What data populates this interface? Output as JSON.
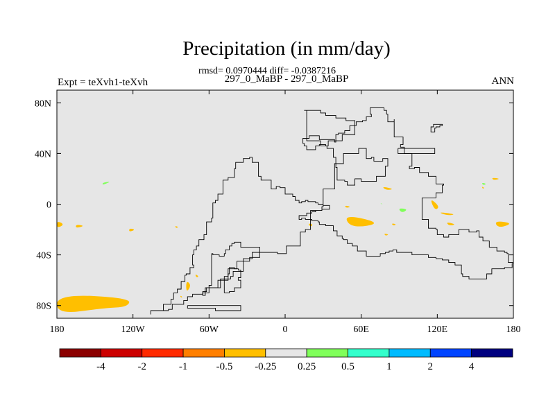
{
  "chart_data": {
    "type": "heatmap",
    "title": "Precipitation (in mm/day)",
    "stats": "rmsd= 0.0970444 diff= -0.0387216",
    "subtitle": "297_0_MaBP - 297_0_MaBP",
    "left_label": "Expt = teXvh1-teXvh",
    "right_label": "ANN",
    "projection": "cylindrical equidistant",
    "xlim": [
      -180,
      180
    ],
    "ylim": [
      -90,
      90
    ],
    "x_tick_values": [
      -180,
      -120,
      -60,
      0,
      60,
      120,
      180
    ],
    "x_tick_labels": [
      "180",
      "120W",
      "60W",
      "0",
      "60E",
      "120E",
      "180"
    ],
    "y_tick_values": [
      80,
      40,
      0,
      -40,
      -80
    ],
    "y_tick_labels": [
      "80N",
      "40N",
      "0",
      "40S",
      "80S"
    ],
    "background_color": "#e6e6e6",
    "colorbar": {
      "colors": [
        "#8b0000",
        "#cc0000",
        "#ff2a00",
        "#ff7f00",
        "#ffbf00",
        "#e6e6e6",
        "#80ff5a",
        "#33ffcc",
        "#00bbff",
        "#0044ff",
        "#00007f"
      ],
      "labels": [
        "-4",
        "-2",
        "-1",
        "-0.5",
        "-0.25",
        "0.25",
        "0.5",
        "1",
        "2",
        "4"
      ]
    },
    "anomaly_regions": [
      {
        "class": "-0.5 to -0.25",
        "color": "#ffbf00",
        "lon": [
          -180,
          -122,
          -124,
          -143,
          -180
        ],
        "lat": [
          -71,
          -74,
          -81,
          -82,
          -87
        ]
      },
      {
        "class": "-0.5 to -0.25",
        "color": "#ffbf00",
        "lon": [
          -180,
          -174,
          -180
        ],
        "lat": [
          -13,
          -16,
          -19
        ]
      },
      {
        "class": "-0.5 to -0.25",
        "color": "#ffbf00",
        "lon": [
          -165,
          -158,
          -165
        ],
        "lat": [
          -16,
          -17,
          -19
        ]
      },
      {
        "class": "-0.5 to -0.25",
        "color": "#ffbf00",
        "lon": [
          -123,
          -118,
          -123
        ],
        "lat": [
          -19,
          -20,
          -22
        ]
      },
      {
        "class": "-0.5 to -0.25",
        "color": "#ffbf00",
        "lon": [
          -87,
          -84,
          -86
        ],
        "lat": [
          -17,
          -18,
          -19
        ]
      },
      {
        "class": "-0.5 to -0.25",
        "color": "#ffbf00",
        "lon": [
          -78,
          -74,
          -78
        ],
        "lat": [
          -60,
          -64,
          -70
        ]
      },
      {
        "class": "-0.5 to -0.25",
        "color": "#ffbf00",
        "lon": [
          -71,
          -68,
          -70
        ],
        "lat": [
          -55,
          -57,
          -58
        ]
      },
      {
        "class": "-0.5 to -0.25",
        "color": "#ffbf00",
        "lon": [
          -83,
          -81,
          -82
        ],
        "lat": [
          -72,
          -73,
          -74
        ]
      },
      {
        "class": "-0.5 to -0.25",
        "color": "#ffbf00",
        "lon": [
          18,
          22,
          20
        ],
        "lat": [
          -15,
          -16,
          -18
        ]
      },
      {
        "class": "-0.5 to -0.25",
        "color": "#ffbf00",
        "lon": [
          46,
          77,
          52
        ],
        "lat": [
          -8,
          -15,
          -19
        ]
      },
      {
        "class": "-0.5 to -0.25",
        "color": "#ffbf00",
        "lon": [
          47,
          52,
          48
        ],
        "lat": [
          -1,
          -2,
          -3
        ]
      },
      {
        "class": "-0.5 to -0.25",
        "color": "#ffbf00",
        "lon": [
          78,
          82,
          79
        ],
        "lat": [
          -23,
          -24,
          -25
        ]
      },
      {
        "class": "-0.5 to -0.25",
        "color": "#ffbf00",
        "lon": [
          84,
          88,
          85
        ],
        "lat": [
          -15,
          -16,
          -17
        ]
      },
      {
        "class": "-0.5 to -0.25",
        "color": "#ffbf00",
        "lon": [
          76,
          86,
          80
        ],
        "lat": [
          14,
          12,
          11
        ]
      },
      {
        "class": "-0.5 to -0.25",
        "color": "#ffbf00",
        "lon": [
          114,
          122,
          118
        ],
        "lat": [
          5,
          -2,
          -5
        ]
      },
      {
        "class": "-0.5 to -0.25",
        "color": "#ffbf00",
        "lon": [
          120,
          135,
          128
        ],
        "lat": [
          -6,
          -8,
          -9
        ]
      },
      {
        "class": "-0.5 to -0.25",
        "color": "#ffbf00",
        "lon": [
          127,
          135,
          129
        ],
        "lat": [
          -14,
          -16,
          -17
        ]
      },
      {
        "class": "-0.5 to -0.25",
        "color": "#ffbf00",
        "lon": [
          165,
          180,
          168
        ],
        "lat": [
          -13,
          -15,
          -19
        ]
      },
      {
        "class": "-0.5 to -0.25",
        "color": "#ffbf00",
        "lon": [
          163,
          170,
          164
        ],
        "lat": [
          21,
          20,
          19
        ]
      },
      {
        "class": "-0.5 to -0.25",
        "color": "#ffbf00",
        "lon": [
          155,
          157,
          156
        ],
        "lat": [
          14,
          13,
          12
        ]
      },
      {
        "class": "0.25 to 0.5",
        "color": "#80ff5a",
        "lon": [
          -144,
          -137,
          -144
        ],
        "lat": [
          17,
          18,
          15
        ]
      },
      {
        "class": "0.25 to 0.5",
        "color": "#80ff5a",
        "lon": [
          89,
          97,
          92
        ],
        "lat": [
          -3,
          -4,
          -7
        ]
      },
      {
        "class": "0.25 to 0.5",
        "color": "#80ff5a",
        "lon": [
          155,
          159,
          156
        ],
        "lat": [
          17,
          16,
          15
        ]
      },
      {
        "class": "0.25 to 0.5",
        "color": "#80ff5a",
        "lon": [
          75,
          77,
          76
        ],
        "lat": [
          1,
          0,
          0
        ]
      }
    ],
    "land_outlines": [
      {
        "name": "pangea",
        "lon": [
          -96,
          -92,
          -89,
          -80,
          -80,
          -77,
          -73,
          -65,
          -62,
          -51,
          -51,
          -43,
          -41,
          -33,
          -26,
          -12,
          -6,
          1,
          12,
          16,
          20,
          20,
          29,
          30,
          39,
          39,
          46,
          58,
          64,
          68,
          70,
          77,
          81,
          79,
          72,
          67,
          60,
          55,
          49,
          47,
          41,
          41,
          40,
          38,
          33,
          32,
          27,
          24,
          21,
          17,
          15,
          14,
          19,
          27,
          32,
          37,
          39,
          40,
          42,
          47,
          51,
          56,
          61,
          64,
          68,
          67,
          74,
          78,
          80,
          81,
          86,
          86,
          93,
          91,
          94,
          94,
          100,
          100,
          98,
          102,
          106,
          113,
          119,
          125,
          124,
          119,
          108,
          108,
          113,
          119,
          120,
          125,
          129,
          137,
          145,
          151,
          153,
          156,
          161,
          167,
          169,
          173,
          175,
          176,
          180,
          179,
          174,
          173,
          167,
          163,
          159,
          152,
          145,
          140,
          139,
          134,
          129,
          124,
          119,
          113,
          108,
          100,
          88,
          85,
          82,
          79,
          75,
          72,
          70,
          64,
          64,
          59,
          57,
          53,
          49,
          46,
          45,
          41,
          38,
          32,
          27,
          26,
          21,
          20,
          16,
          13,
          13,
          11,
          11,
          17,
          21,
          24,
          29,
          35,
          35,
          30,
          26,
          24,
          18,
          16,
          13,
          11,
          8,
          6,
          0,
          -4,
          -7,
          -10,
          -11,
          -15,
          -19,
          -21,
          -26,
          -28,
          -33,
          -39,
          -40,
          -40,
          -45,
          -49,
          -49,
          -53,
          -55,
          -57,
          -57,
          -58,
          -62,
          -62,
          -64,
          -68,
          -70,
          -72,
          -73,
          -72,
          -75,
          -78,
          -79,
          -82,
          -85,
          -88,
          -90,
          -90,
          -96,
          -96,
          -106,
          -106
        ],
        "lat": [
          -84,
          -83,
          -79,
          -78,
          -76,
          -73,
          -71,
          -69,
          -66,
          -65,
          -59,
          -57,
          -53,
          -43,
          -38,
          -38,
          -39,
          -33,
          -22,
          -20,
          -12,
          -5,
          -2,
          12,
          19,
          32,
          40,
          44,
          36,
          37,
          34,
          36,
          30,
          22,
          18,
          18,
          20,
          15,
          18,
          19,
          22,
          29,
          37,
          44,
          46,
          47,
          46,
          43,
          43,
          46,
          48,
          52,
          54,
          51,
          51,
          51,
          49,
          55,
          56,
          58,
          62,
          65,
          66,
          69,
          71,
          76,
          76,
          74,
          71,
          65,
          67,
          53,
          47,
          45,
          43,
          40,
          40,
          30,
          28,
          29,
          25,
          22,
          16,
          15,
          9,
          5,
          1,
          -12,
          -19,
          -20,
          -24,
          -26,
          -24,
          -20,
          -22,
          -21,
          -26,
          -29,
          -34,
          -37,
          -37,
          -38,
          -39,
          -46,
          -47,
          -50,
          -50,
          -51,
          -51,
          -55,
          -59,
          -59,
          -57,
          -55,
          -48,
          -46,
          -44,
          -43,
          -42,
          -40,
          -40,
          -38,
          -36,
          -37,
          -38,
          -39,
          -41,
          -41,
          -41,
          -39,
          -37,
          -37,
          -33,
          -31,
          -28,
          -27,
          -25,
          -21,
          -17,
          -16,
          -14,
          -13,
          -12,
          -12,
          -11,
          -11,
          -12,
          -12,
          -9,
          -7,
          -6,
          -5,
          -4,
          -4,
          -1,
          0,
          1,
          2,
          3,
          2,
          1,
          3,
          6,
          8,
          13,
          14,
          12,
          12,
          19,
          19,
          22,
          33,
          37,
          36,
          33,
          28,
          24,
          21,
          19,
          14,
          8,
          3,
          1,
          -4,
          -11,
          -14,
          -19,
          -24,
          -28,
          -33,
          -36,
          -40,
          -48,
          -50,
          -55,
          -56,
          -61,
          -67,
          -70,
          -75,
          -77,
          -79,
          -84,
          -84,
          -87,
          -87
        ]
      },
      {
        "name": "south-wedge",
        "lon": [
          -58,
          -57,
          -52,
          -48,
          -47,
          -44,
          -42,
          -40,
          -35,
          -28,
          -20,
          -20,
          -28,
          -38,
          -45,
          -53,
          -63,
          -65,
          -60,
          -58
        ],
        "lat": [
          -39,
          -40,
          -41,
          -39,
          -36,
          -33,
          -31,
          -30,
          -34,
          -34,
          -36,
          -42,
          -45,
          -51,
          -60,
          -66,
          -72,
          -70,
          -64,
          -39
        ]
      },
      {
        "name": "strip",
        "lon": [
          -48,
          -44,
          -40,
          -35,
          -35,
          -37,
          -35,
          -35,
          -37,
          -40,
          -44,
          -45,
          -48,
          -48
        ],
        "lat": [
          -70,
          -69,
          -66,
          -64,
          -60,
          -58,
          -55,
          -52,
          -51,
          -50,
          -55,
          -57,
          -60,
          -70
        ]
      },
      {
        "name": "antarctic-bar",
        "lon": [
          -77,
          -58,
          -38,
          -35,
          -35,
          -55,
          -77
        ],
        "lat": [
          -80,
          -80,
          -80,
          -82,
          -84,
          -82,
          -80
        ]
      },
      {
        "name": "n-ocean-coast",
        "lon": [
          15,
          28,
          32,
          40,
          48,
          55,
          55,
          45,
          34,
          28,
          17,
          17
        ],
        "lat": [
          74,
          72,
          70,
          68,
          66,
          63,
          55,
          50,
          46,
          50,
          58,
          74
        ]
      },
      {
        "name": "north-rect",
        "lon": [
          89,
          118,
          118,
          93,
          89,
          89
        ],
        "lat": [
          44,
          44,
          40,
          40,
          40,
          44
        ]
      },
      {
        "name": "east-stair",
        "lon": [
          124,
          122,
          119,
          118,
          116,
          115,
          117,
          124,
          124
        ],
        "lat": [
          62,
          61,
          60,
          57,
          57,
          61,
          63,
          63,
          62
        ]
      }
    ]
  }
}
